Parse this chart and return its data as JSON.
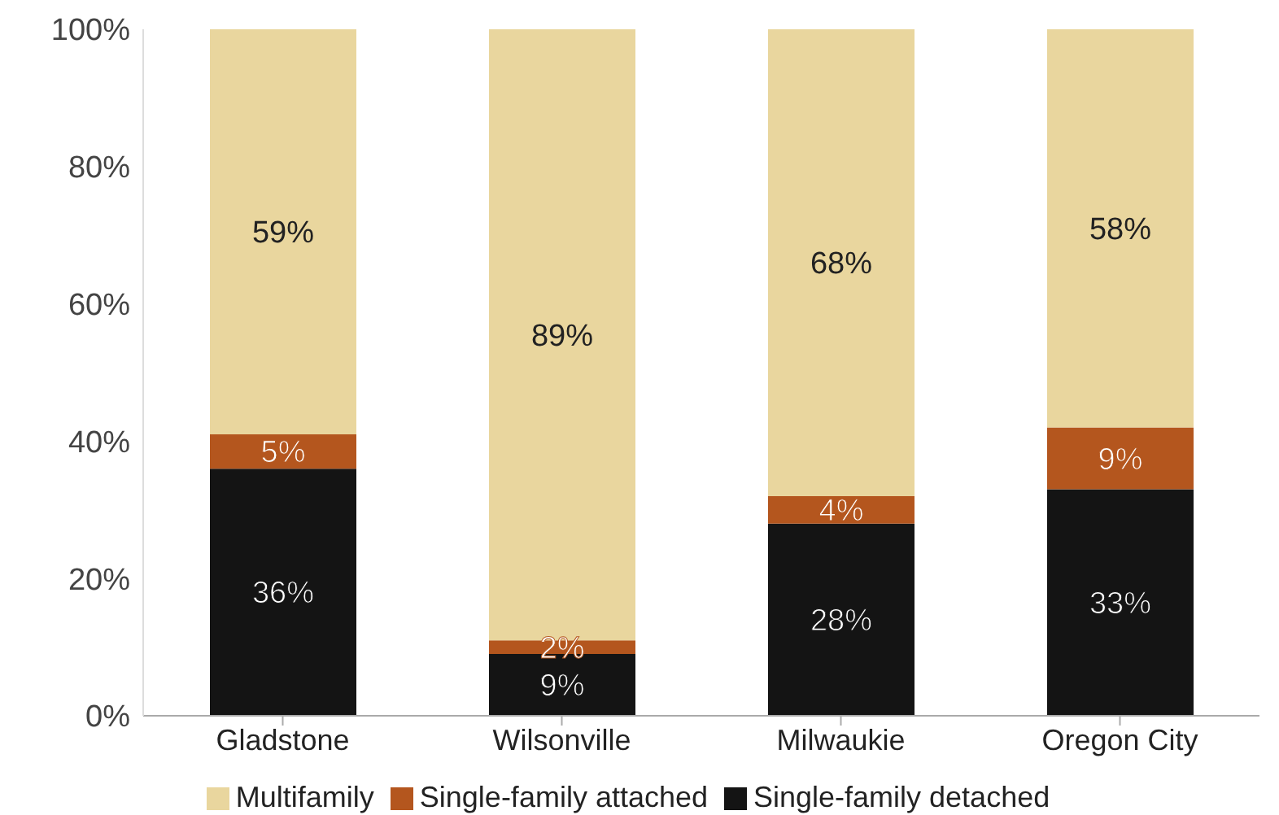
{
  "chart_data": {
    "type": "bar",
    "stacked": true,
    "categories": [
      "Gladstone",
      "Wilsonville",
      "Milwaukie",
      "Oregon City"
    ],
    "series": [
      {
        "name": "Single-family detached",
        "color": "#141414",
        "values": [
          36,
          9,
          28,
          33
        ],
        "value_labels": [
          "36%",
          "9%",
          "28%",
          "33%"
        ]
      },
      {
        "name": "Single-family attached",
        "color": "#b4561e",
        "values": [
          5,
          2,
          4,
          9
        ],
        "value_labels": [
          "5%",
          "2%",
          "4%",
          "9%"
        ]
      },
      {
        "name": "Multifamily",
        "color": "#e9d69e",
        "values": [
          59,
          89,
          68,
          58
        ],
        "value_labels": [
          "59%",
          "89%",
          "68%",
          "58%"
        ]
      }
    ],
    "ylim": [
      0,
      100
    ],
    "yticks": [
      {
        "value": 0,
        "label": "0%"
      },
      {
        "value": 20,
        "label": "20%"
      },
      {
        "value": 40,
        "label": "40%"
      },
      {
        "value": 60,
        "label": "60%"
      },
      {
        "value": 80,
        "label": "80%"
      },
      {
        "value": 100,
        "label": "100%"
      }
    ],
    "grid": false,
    "legend": "bottom"
  }
}
